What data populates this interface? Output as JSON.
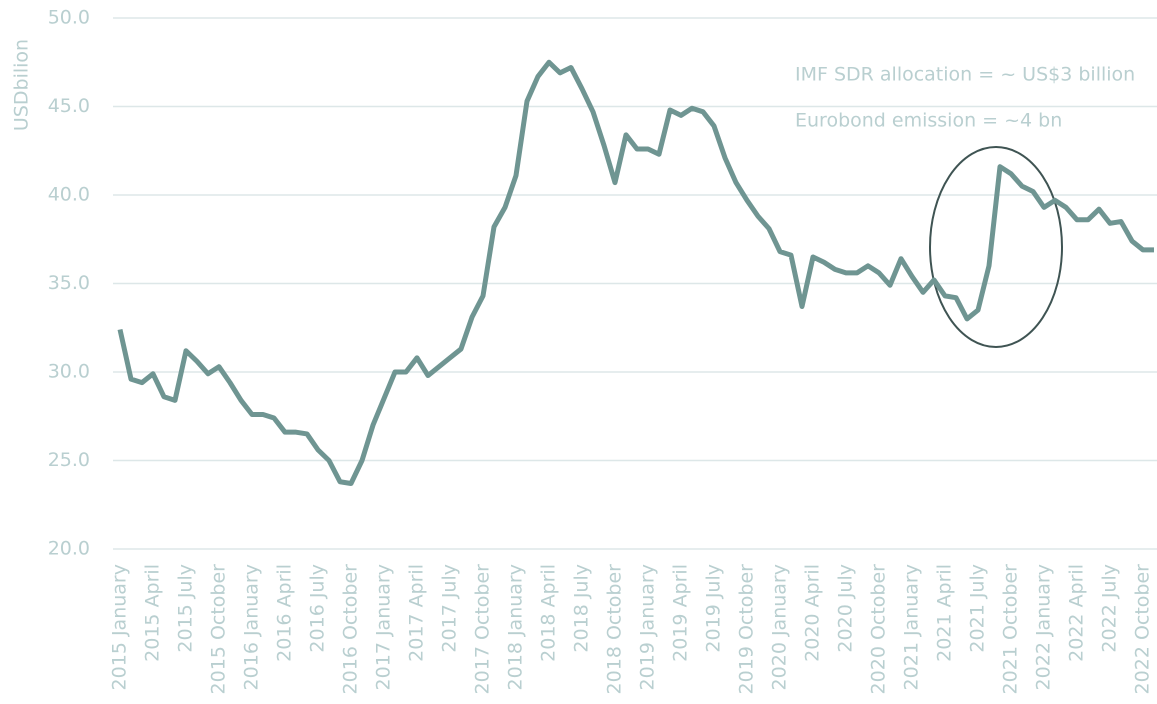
{
  "chart_data": {
    "type": "line",
    "ylabel": "USDbilion",
    "annotations": [
      "IMF SDR allocation = ~ US$3 billion",
      "Eurobond emission = ~4 bn"
    ],
    "categories": [
      "2015 January",
      null,
      null,
      "2015 April",
      null,
      null,
      "2015 July",
      null,
      null,
      "2015 October",
      null,
      null,
      "2016 January",
      null,
      null,
      "2016 April",
      null,
      null,
      "2016 July",
      null,
      null,
      "2016 October",
      null,
      null,
      "2017 January",
      null,
      null,
      "2017 April",
      null,
      null,
      "2017 July",
      null,
      null,
      "2017 October",
      null,
      null,
      "2018 January",
      null,
      null,
      "2018 April",
      null,
      null,
      "2018 July",
      null,
      null,
      "2018 October",
      null,
      null,
      "2019 January",
      null,
      null,
      "2019 April",
      null,
      null,
      "2019 July",
      null,
      null,
      "2019 October",
      null,
      null,
      "2020 January",
      null,
      null,
      "2020 April",
      null,
      null,
      "2020 July",
      null,
      null,
      "2020 October",
      null,
      null,
      "2021 January",
      null,
      null,
      "2021 April",
      null,
      null,
      "2021 July",
      null,
      null,
      "2021 October",
      null,
      null,
      "2022 January",
      null,
      null,
      "2022 April",
      null,
      null,
      "2022 July",
      null,
      null,
      "2022 October",
      null
    ],
    "series": [
      {
        "color": "#6f9592",
        "values": [
          32.4,
          29.6,
          29.4,
          29.9,
          28.6,
          28.4,
          31.2,
          30.6,
          29.9,
          30.3,
          29.4,
          28.4,
          27.6,
          27.6,
          27.4,
          26.6,
          26.6,
          26.5,
          25.6,
          25.0,
          23.8,
          23.7,
          25.0,
          27.0,
          28.5,
          30.0,
          30.0,
          30.8,
          29.8,
          30.3,
          30.8,
          31.3,
          33.1,
          34.3,
          38.2,
          39.3,
          41.1,
          45.3,
          46.7,
          47.5,
          46.9,
          47.2,
          46.0,
          44.7,
          42.8,
          40.7,
          43.4,
          42.6,
          42.6,
          42.3,
          44.8,
          44.5,
          44.9,
          44.7,
          43.9,
          42.1,
          40.7,
          39.7,
          38.8,
          38.1,
          36.8,
          36.6,
          33.7,
          36.5,
          36.2,
          35.8,
          35.6,
          35.6,
          36.0,
          35.6,
          34.9,
          36.4,
          35.4,
          34.5,
          35.2,
          34.3,
          34.2,
          33.0,
          33.5,
          36.0,
          41.6,
          41.2,
          40.5,
          40.2,
          39.3,
          39.7,
          39.3,
          38.6,
          38.6,
          39.2,
          38.4,
          38.5,
          37.4,
          36.9,
          36.9
        ]
      }
    ],
    "ylim": [
      20,
      50
    ],
    "yticks": [
      {
        "value": 20,
        "label": "20.0"
      },
      {
        "value": 25,
        "label": "25.0"
      },
      {
        "value": 30,
        "label": "30.0"
      },
      {
        "value": 35,
        "label": "35.0"
      },
      {
        "value": 40,
        "label": "40.0"
      },
      {
        "value": 45,
        "label": "45.0"
      },
      {
        "value": 50,
        "label": "50.0"
      }
    ],
    "grid": true
  }
}
